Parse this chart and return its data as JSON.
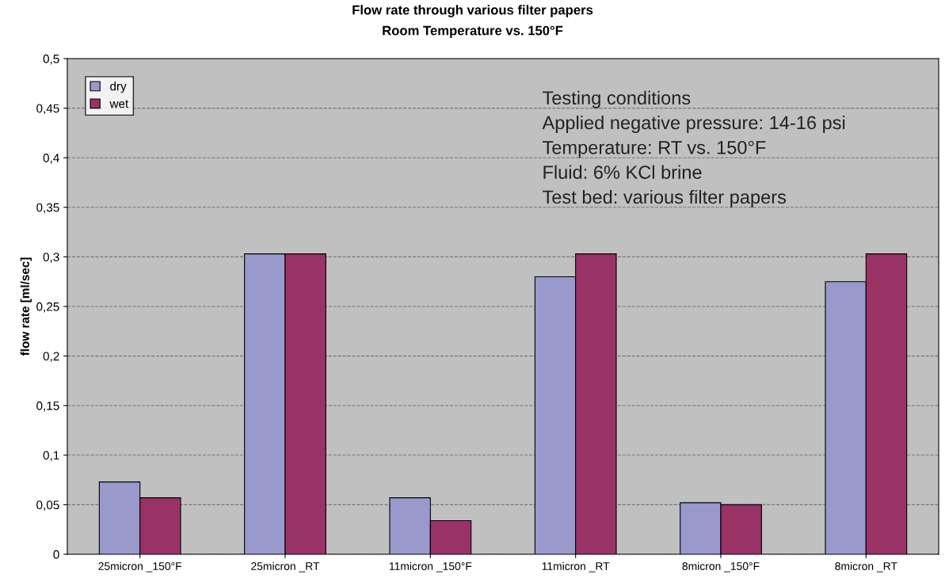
{
  "chart_data": {
    "type": "bar",
    "title": "Flow rate through various filter papers",
    "subtitle": "Room Temperature vs. 150°F",
    "ylabel": "flow rate [ml/sec]",
    "categories": [
      "25micron _150°F",
      "25micron _RT",
      "11micron _150°F",
      "11micron _RT",
      "8micron _150°F",
      "8micron _RT"
    ],
    "series": [
      {
        "name": "dry",
        "color": "#9999cc",
        "values": [
          0.073,
          0.303,
          0.057,
          0.28,
          0.052,
          0.275
        ]
      },
      {
        "name": "wet",
        "color": "#993366",
        "values": [
          0.057,
          0.303,
          0.034,
          0.303,
          0.05,
          0.303
        ]
      }
    ],
    "ylim": [
      0,
      0.5
    ],
    "yticks": [
      {
        "value": 0,
        "label": "0"
      },
      {
        "value": 0.05,
        "label": "0,05"
      },
      {
        "value": 0.1,
        "label": "0,1"
      },
      {
        "value": 0.15,
        "label": "0,15"
      },
      {
        "value": 0.2,
        "label": "0,2"
      },
      {
        "value": 0.25,
        "label": "0,25"
      },
      {
        "value": 0.3,
        "label": "0,3"
      },
      {
        "value": 0.35,
        "label": "0,35"
      },
      {
        "value": 0.4,
        "label": "0,4"
      },
      {
        "value": 0.45,
        "label": "0,45"
      },
      {
        "value": 0.5,
        "label": "0,5"
      }
    ],
    "grid": "y",
    "legend": "top left",
    "annotations": [
      "Testing conditions",
      "Applied negative pressure: 14-16 psi",
      "Temperature: RT vs. 150°F",
      "Fluid: 6% KCl brine",
      "Test bed: various filter papers"
    ]
  }
}
